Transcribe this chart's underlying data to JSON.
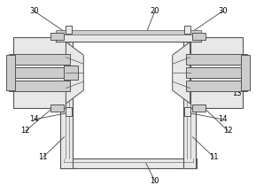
{
  "bg_color": "#ffffff",
  "line_color": "#555555",
  "fill_light": "#e8e8e8",
  "fill_mid": "#cccccc",
  "fill_dark": "#aaaaaa",
  "figsize": [
    2.89,
    2.18
  ],
  "dpi": 100
}
